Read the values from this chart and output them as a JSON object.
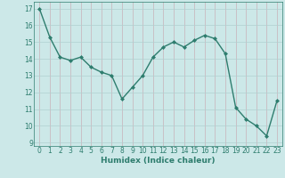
{
  "x": [
    0,
    1,
    2,
    3,
    4,
    5,
    6,
    7,
    8,
    9,
    10,
    11,
    12,
    13,
    14,
    15,
    16,
    17,
    18,
    19,
    20,
    21,
    22,
    23
  ],
  "y": [
    17.0,
    15.3,
    14.1,
    13.9,
    14.1,
    13.5,
    13.2,
    13.0,
    11.6,
    12.3,
    13.0,
    14.1,
    14.7,
    15.0,
    14.7,
    15.1,
    15.4,
    15.2,
    14.3,
    11.1,
    10.4,
    10.0,
    9.4,
    11.5
  ],
  "line_color": "#2e7d6e",
  "marker": "D",
  "marker_size": 2.0,
  "bg_color": "#cce8e8",
  "grid_color_major": "#b0d0d0",
  "grid_color_minor": "#d8ecec",
  "xlabel": "Humidex (Indice chaleur)",
  "ylim": [
    8.8,
    17.4
  ],
  "xlim": [
    -0.5,
    23.5
  ],
  "yticks": [
    9,
    10,
    11,
    12,
    13,
    14,
    15,
    16,
    17
  ],
  "xticks": [
    0,
    1,
    2,
    3,
    4,
    5,
    6,
    7,
    8,
    9,
    10,
    11,
    12,
    13,
    14,
    15,
    16,
    17,
    18,
    19,
    20,
    21,
    22,
    23
  ],
  "label_fontsize": 6.5,
  "tick_fontsize": 5.5,
  "line_width": 1.0
}
